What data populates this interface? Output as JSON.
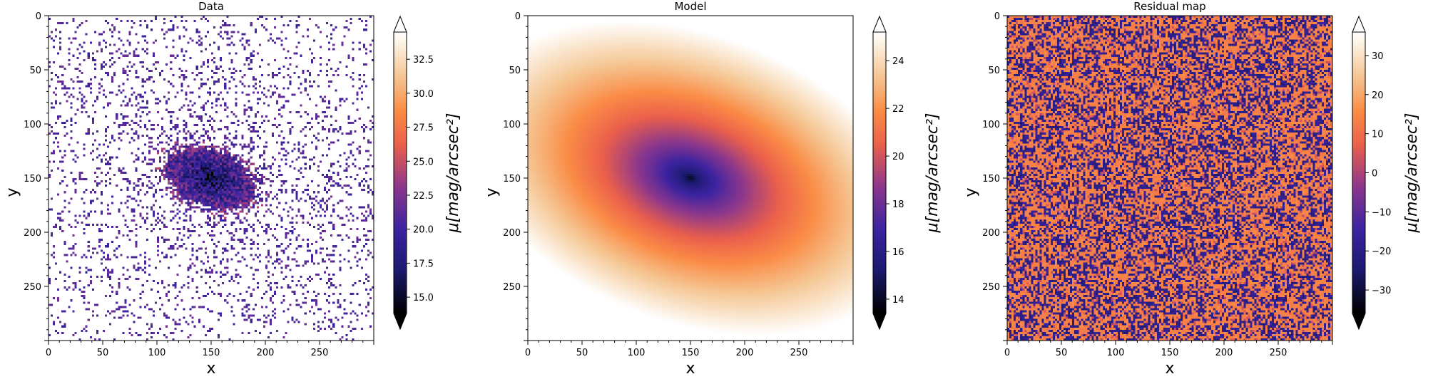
{
  "chart_data": [
    {
      "type": "heatmap",
      "title": "Data",
      "xlabel": "x",
      "ylabel": "y",
      "xlim": [
        0,
        300
      ],
      "ylim": [
        300,
        0
      ],
      "x_ticks": [
        0,
        50,
        100,
        150,
        200,
        250
      ],
      "y_ticks": [
        0,
        50,
        100,
        150,
        200,
        250
      ],
      "colorbar": {
        "label": "μ[mag/arcsec²]",
        "range": [
          13.8,
          34.5
        ],
        "ticks": [
          15.0,
          17.5,
          20.0,
          22.5,
          25.0,
          27.5,
          30.0,
          32.5
        ],
        "tick_labels": [
          "15.0",
          "17.5",
          "20.0",
          "22.5",
          "25.0",
          "27.5",
          "30.0",
          "32.5"
        ],
        "extend": "both"
      },
      "colormap": "CMRmap-like (black → navy → purple → orange → white)",
      "description": "Noisy galaxy image: dense dark core at (150,150), elliptical purple envelope, sparse purple speckles on white background"
    },
    {
      "type": "heatmap",
      "title": "Model",
      "xlabel": "x",
      "ylabel": "y",
      "xlim": [
        0,
        300
      ],
      "ylim": [
        300,
        0
      ],
      "x_ticks": [
        0,
        50,
        100,
        150,
        200,
        250
      ],
      "y_ticks": [
        0,
        50,
        100,
        150,
        200,
        250
      ],
      "colorbar": {
        "label": "μ[mag/arcsec²]",
        "range": [
          13.4,
          25.2
        ],
        "ticks": [
          14,
          16,
          18,
          20,
          22,
          24
        ],
        "tick_labels": [
          "14",
          "16",
          "18",
          "20",
          "22",
          "24"
        ],
        "extend": "both"
      },
      "colormap": "CMRmap-like (black → navy → purple → orange → white)",
      "description": "Smooth elliptical surface-brightness model centered at (150,150), tilted ellipse"
    },
    {
      "type": "heatmap",
      "title": "Residual map",
      "xlabel": "x",
      "ylabel": "y",
      "xlim": [
        0,
        300
      ],
      "ylim": [
        300,
        0
      ],
      "x_ticks": [
        0,
        50,
        100,
        150,
        200,
        250
      ],
      "y_ticks": [
        0,
        50,
        100,
        150,
        200,
        250
      ],
      "colorbar": {
        "label": "μ[mag/arcsec²]",
        "range": [
          -36,
          36
        ],
        "ticks": [
          -30,
          -20,
          -10,
          0,
          10,
          20,
          30
        ],
        "tick_labels": [
          "−30",
          "−20",
          "−10",
          "0",
          "10",
          "20",
          "30"
        ],
        "extend": "both"
      },
      "colormap": "CMRmap-like (black → navy → purple → orange → white)",
      "description": "Random noise residuals mixing navy and orange pixels uniformly"
    }
  ]
}
